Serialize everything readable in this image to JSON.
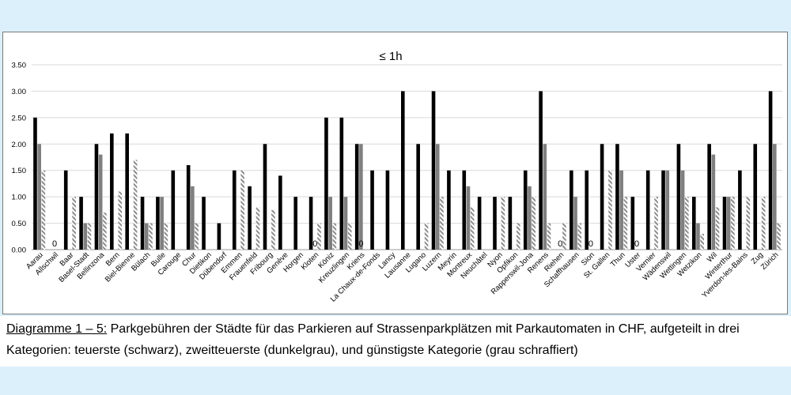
{
  "chart_data": {
    "type": "bar",
    "title": "≤ 1h",
    "ylim": [
      0,
      3.5
    ],
    "yticks": [
      "0.00",
      "0.50",
      "1.00",
      "1.50",
      "2.00",
      "2.50",
      "3.00",
      "3.50"
    ],
    "grid": true,
    "legend": "none",
    "categories": [
      "Aarau",
      "Allschwil",
      "Baar",
      "Basel-Stadt",
      "Bellinzona",
      "Bern",
      "Biel-Bienne",
      "Bülach",
      "Bulle",
      "Carouge",
      "Chur",
      "Dietikon",
      "Dübendorf",
      "Emmen",
      "Frauenfeld",
      "Fribourg",
      "Genève",
      "Horgen",
      "Kloten",
      "Köniz",
      "Kreuzlingen",
      "Kriens",
      "La Chaux-de-Fonds",
      "Lancy",
      "Lausanne",
      "Lugano",
      "Luzern",
      "Meyrin",
      "Montreux",
      "Neuchâtel",
      "Nyon",
      "Opfikon",
      "Rapperswil-Jona",
      "Renens",
      "Riehen",
      "Schaffhausen",
      "Sion",
      "St. Gallen",
      "Thun",
      "Uster",
      "Vernier",
      "Wädenswil",
      "Wettingen",
      "Wetzikon",
      "Wil",
      "Winterthur",
      "Yverdon-les-Bains",
      "Zug",
      "Zürich"
    ],
    "series": [
      {
        "values": [
          2.5,
          0,
          1.5,
          1,
          2,
          2.2,
          2.2,
          1,
          1,
          1.5,
          1.6,
          1,
          0.5,
          1.5,
          1.2,
          2,
          1.4,
          1,
          1,
          2.5,
          2.5,
          2,
          1.5,
          1.5,
          3,
          2,
          3,
          1.5,
          1.5,
          1,
          1,
          1,
          1.5,
          3,
          0,
          1.5,
          1.5,
          2,
          2,
          1,
          1.5,
          1.5,
          2,
          1,
          2,
          1,
          1.5,
          2,
          3
        ],
        "color": "#000000",
        "pattern": "solid"
      },
      {
        "values": [
          2,
          0,
          0,
          0.5,
          1.8,
          0,
          0,
          0.5,
          1,
          0,
          1.2,
          0,
          0,
          0,
          0,
          0,
          0,
          0,
          0,
          1,
          1,
          2,
          0,
          0,
          0,
          0,
          2,
          0,
          1.2,
          0,
          0,
          0,
          1.2,
          2,
          0,
          1,
          0,
          0,
          1.5,
          0,
          0,
          1.5,
          1.5,
          0.5,
          1.8,
          1,
          0,
          0,
          2
        ],
        "color": "#7f7f7f",
        "pattern": "solid"
      },
      {
        "values": [
          1.5,
          0,
          1,
          0.5,
          0.7,
          1.1,
          1.7,
          0.5,
          0.5,
          0,
          0.5,
          0,
          0,
          1.5,
          0.8,
          0.75,
          0,
          0,
          0.5,
          0.5,
          0.5,
          0,
          0,
          0,
          0,
          0.5,
          1,
          0,
          0.8,
          0,
          1,
          0.5,
          1,
          0.5,
          0.5,
          0.5,
          0,
          1.5,
          1,
          0,
          1,
          0,
          1,
          0.3,
          0.8,
          1,
          1,
          1,
          0.5
        ],
        "color": "#8c8c8c",
        "pattern": "hatched"
      }
    ],
    "annotations": [
      {
        "category": "Allschwil",
        "text": "0"
      },
      {
        "category": "Kloten",
        "text": "0"
      },
      {
        "category": "Kriens",
        "text": "0"
      },
      {
        "category": "Riehen",
        "text": "0"
      },
      {
        "category": "Sion",
        "text": "0"
      },
      {
        "category": "Uster",
        "text": "0"
      }
    ]
  },
  "caption": {
    "label": "Diagramme 1 – 5:",
    "text": " Parkgebühren der Städte für das Parkieren auf Strassenparkplätzen mit Parkautomaten in CHF, aufgeteilt in drei Kategorien: teuerste (schwarz), zweitteuerste (dunkelgrau), und günstigste Kategorie (grau schraffiert)"
  }
}
